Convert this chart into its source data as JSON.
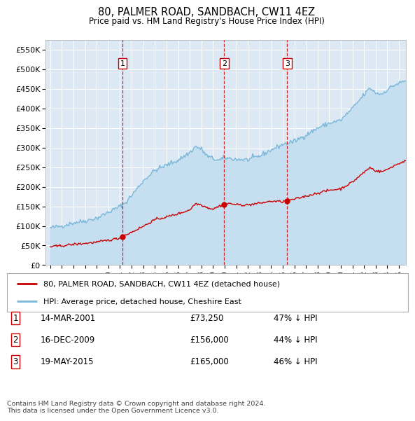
{
  "title": "80, PALMER ROAD, SANDBACH, CW11 4EZ",
  "subtitle": "Price paid vs. HM Land Registry's House Price Index (HPI)",
  "background_color": "#ffffff",
  "plot_bg_color": "#dce9f5",
  "hpi_color": "#7ab8d9",
  "hpi_fill_color": "#c5dff0",
  "price_color": "#cc0000",
  "dashed_color": "#cc0000",
  "transactions": [
    {
      "label": "1",
      "date": "14-MAR-2001",
      "price": 73250,
      "pct": "47%",
      "x_year": 2001.21
    },
    {
      "label": "2",
      "date": "16-DEC-2009",
      "price": 156000,
      "pct": "44%",
      "x_year": 2009.96
    },
    {
      "label": "3",
      "date": "19-MAY-2015",
      "price": 165000,
      "pct": "46%",
      "x_year": 2015.38
    }
  ],
  "legend_line1": "80, PALMER ROAD, SANDBACH, CW11 4EZ (detached house)",
  "legend_line2": "HPI: Average price, detached house, Cheshire East",
  "footer1": "Contains HM Land Registry data © Crown copyright and database right 2024.",
  "footer2": "This data is licensed under the Open Government Licence v3.0.",
  "ylim": [
    0,
    575000
  ],
  "yticks": [
    0,
    50000,
    100000,
    150000,
    200000,
    250000,
    300000,
    350000,
    400000,
    450000,
    500000,
    550000
  ],
  "xlim_start": 1994.6,
  "xlim_end": 2025.6
}
